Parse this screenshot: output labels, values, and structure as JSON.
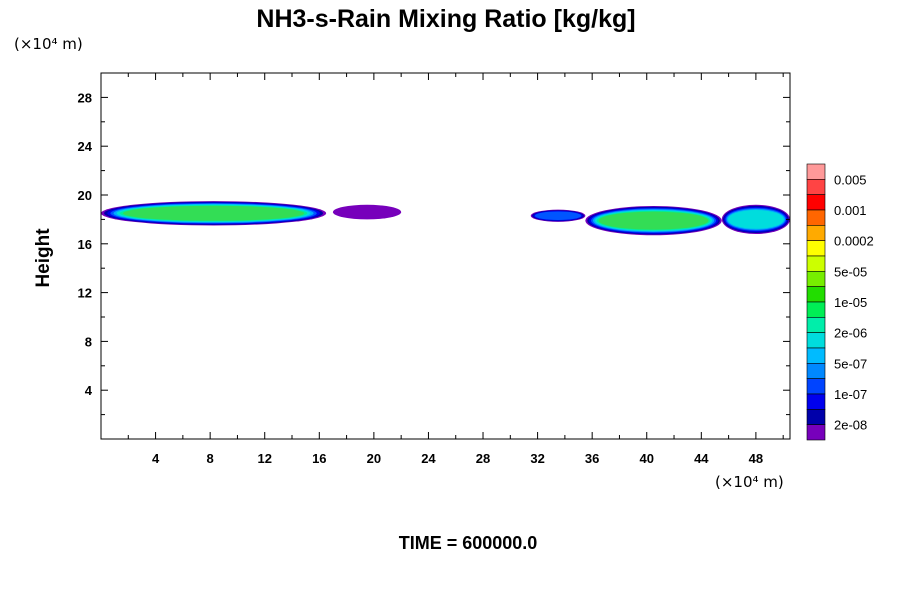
{
  "chart_data": {
    "type": "heatmap",
    "title": "NH3-s-Rain Mixing Ratio [kg/kg]",
    "ylabel": "Height",
    "xlabel": "",
    "x_unit": "(×10⁴ m)",
    "y_unit": "(×10⁴ m)",
    "xlim": [
      0,
      50.5
    ],
    "ylim": [
      0,
      30
    ],
    "x_ticks": [
      4,
      8,
      12,
      16,
      20,
      24,
      28,
      32,
      36,
      40,
      44,
      48
    ],
    "y_ticks": [
      4,
      8,
      12,
      16,
      20,
      24,
      28
    ],
    "legend": {
      "labels": [
        "0.005",
        "0.001",
        "0.0002",
        "5e-05",
        "1e-05",
        "2e-06",
        "5e-07",
        "1e-07",
        "2e-08"
      ],
      "colors": [
        "#ff9999",
        "#ff4444",
        "#ff0000",
        "#ff6600",
        "#ffaa00",
        "#ffff00",
        "#ccff00",
        "#77ee00",
        "#22dd00",
        "#00ee55",
        "#00eeaa",
        "#00dddd",
        "#00bbff",
        "#0088ff",
        "#0044ff",
        "#0000ee",
        "#0000aa",
        "#7700bb"
      ]
    },
    "cloud_layers": [
      {
        "x": [
          0,
          16.5
        ],
        "y": [
          17.5,
          19.5
        ],
        "peak_level": "5e-06"
      },
      {
        "x": [
          17,
          22
        ],
        "y": [
          18.0,
          19.2
        ],
        "peak_level": "2e-08"
      },
      {
        "x": [
          31.5,
          35.5
        ],
        "y": [
          17.8,
          18.8
        ],
        "peak_level": "1e-07"
      },
      {
        "x": [
          35.5,
          45.5
        ],
        "y": [
          16.7,
          19.1
        ],
        "peak_level": "5e-06"
      },
      {
        "x": [
          45.5,
          50.5
        ],
        "y": [
          16.8,
          19.2
        ],
        "peak_level": "2e-06"
      }
    ]
  },
  "footer": {
    "time_text": "TIME = 600000.0"
  }
}
